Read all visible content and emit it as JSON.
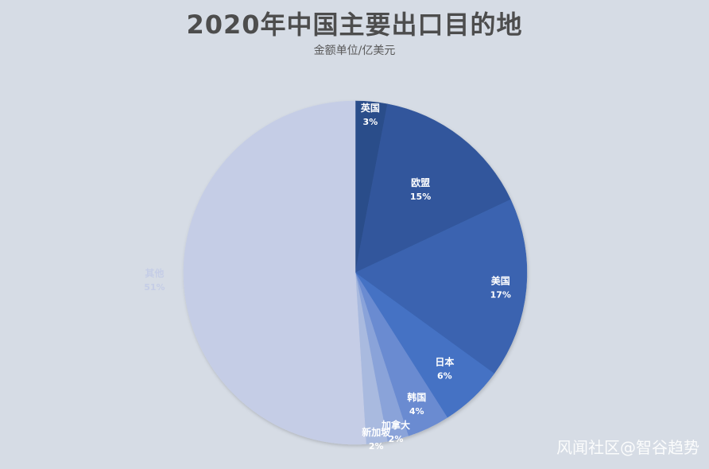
{
  "chart_data": {
    "type": "pie",
    "title": "2020年中国主要出口目的地",
    "subtitle": "金额单位/亿美元",
    "categories": [
      "英国",
      "欧盟",
      "美国",
      "日本",
      "韩国",
      "加拿大",
      "新加坡",
      "其他"
    ],
    "values": [
      3,
      15,
      17,
      6,
      4,
      2,
      2,
      51
    ],
    "data_labels": [
      "3%",
      "15%",
      "17%",
      "6%",
      "4%",
      "2%",
      "2%",
      "51%"
    ],
    "colors": [
      "#2c4d8a",
      "#33579c",
      "#3a64b0",
      "#4472c4",
      "#6a8bd1",
      "#8aa3d9",
      "#a9badf",
      "#c5cde6"
    ],
    "label_colors": [
      "#ffffff",
      "#ffffff",
      "#ffffff",
      "#ffffff",
      "#ffffff",
      "#ffffff",
      "#ffffff",
      "#c5cde6"
    ],
    "legend": "none"
  },
  "watermark": "风闻社区@智谷趋势"
}
